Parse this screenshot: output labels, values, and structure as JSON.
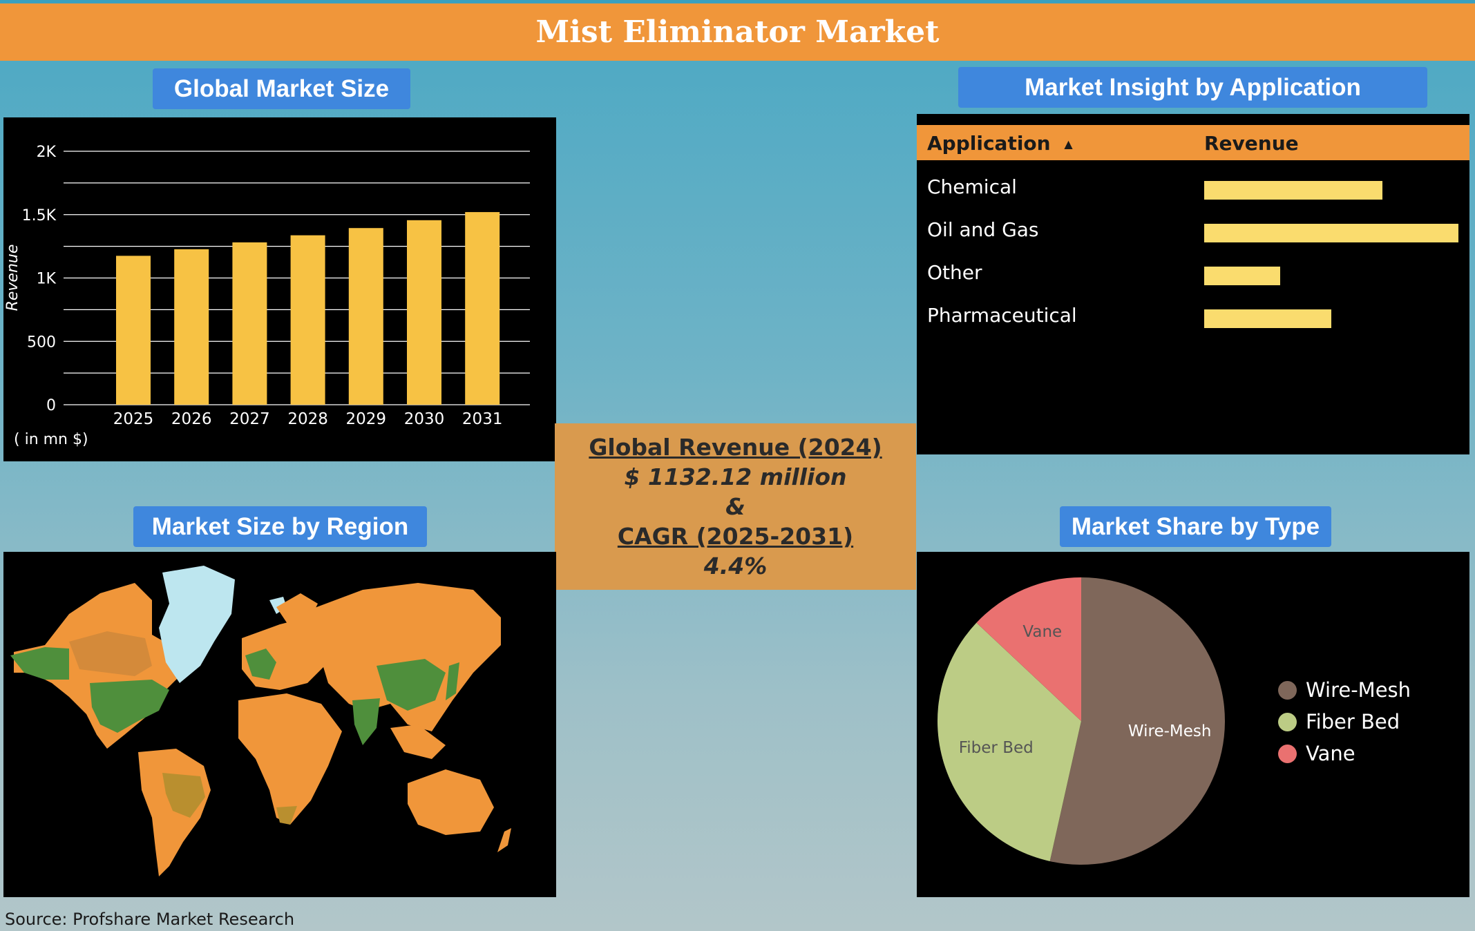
{
  "title": "Mist Eliminator Market",
  "sections": {
    "global_market_size": "Global Market Size",
    "market_insight": "Market Insight by Application",
    "market_region": "Market Size by Region",
    "market_type": "Market Share by Type"
  },
  "center": {
    "revenue_label": "Global Revenue (2024)",
    "revenue_value": "$ 1132.12 million",
    "ampersand": "&",
    "cagr_label": "CAGR (2025-2031)",
    "cagr_value": "4.4%"
  },
  "source": "Source: Profshare Market Research",
  "colors": {
    "bar": "#f7c244",
    "app_bar": "#fadc6e",
    "header": "#f0963a",
    "label_bg": "#3f87dd",
    "map_orange": "#f0963a",
    "map_green": "#4f8f3c",
    "map_olive": "#b98f2f",
    "map_ice": "#bde6ef"
  },
  "chart_data": [
    {
      "type": "bar",
      "categories": [
        "2025",
        "2026",
        "2027",
        "2028",
        "2029",
        "2030",
        "2031"
      ],
      "values": [
        1175,
        1227,
        1281,
        1337,
        1394,
        1456,
        1520
      ],
      "ylabel": "Revenue",
      "unit_note": "( in mn $)",
      "yticks": [
        "0",
        "500",
        "1K",
        "1.5K",
        "2K"
      ],
      "ylim": [
        0,
        2000
      ],
      "grid": true
    },
    {
      "type": "table",
      "columns": [
        "Application",
        "Revenue"
      ],
      "sort_indicator": "ascending",
      "rows": [
        {
          "label": "Chemical",
          "value": 0.7
        },
        {
          "label": "Oil and Gas",
          "value": 1.0
        },
        {
          "label": "Other",
          "value": 0.3
        },
        {
          "label": "Pharmaceutical",
          "value": 0.5
        }
      ]
    },
    {
      "type": "pie",
      "labels": [
        "Wire-Mesh",
        "Fiber Bed",
        "Vane"
      ],
      "values": [
        53.5,
        33.5,
        13.0
      ],
      "colors": [
        "#7f675a",
        "#bccc85",
        "#ea7170"
      ],
      "legend": "right"
    }
  ]
}
